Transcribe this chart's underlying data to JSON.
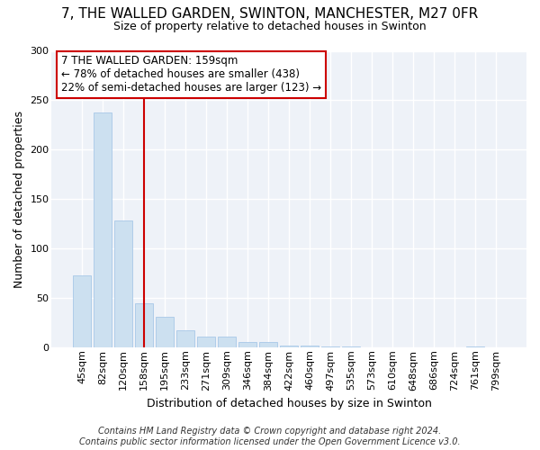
{
  "title1": "7, THE WALLED GARDEN, SWINTON, MANCHESTER, M27 0FR",
  "title2": "Size of property relative to detached houses in Swinton",
  "xlabel": "Distribution of detached houses by size in Swinton",
  "ylabel": "Number of detached properties",
  "categories": [
    "45sqm",
    "82sqm",
    "120sqm",
    "158sqm",
    "195sqm",
    "233sqm",
    "271sqm",
    "309sqm",
    "346sqm",
    "384sqm",
    "422sqm",
    "460sqm",
    "497sqm",
    "535sqm",
    "573sqm",
    "610sqm",
    "648sqm",
    "686sqm",
    "724sqm",
    "761sqm",
    "799sqm"
  ],
  "values": [
    73,
    238,
    128,
    44,
    31,
    17,
    11,
    11,
    5,
    5,
    2,
    2,
    1,
    1,
    0,
    0,
    0,
    0,
    0,
    1,
    0
  ],
  "bar_color": "#cce0f0",
  "bar_edge_color": "#a8c8e8",
  "vline_x_index": 3,
  "vline_color": "#cc0000",
  "annotation_text": "7 THE WALLED GARDEN: 159sqm\n← 78% of detached houses are smaller (438)\n22% of semi-detached houses are larger (123) →",
  "annotation_box_facecolor": "#ffffff",
  "annotation_box_edgecolor": "#cc0000",
  "ylim": [
    0,
    300
  ],
  "yticks": [
    0,
    50,
    100,
    150,
    200,
    250,
    300
  ],
  "bg_color": "#ffffff",
  "plot_bg_color": "#eef2f8",
  "grid_color": "#ffffff",
  "footer": "Contains HM Land Registry data © Crown copyright and database right 2024.\nContains public sector information licensed under the Open Government Licence v3.0.",
  "title1_fontsize": 11,
  "title2_fontsize": 9,
  "ylabel_fontsize": 9,
  "xlabel_fontsize": 9,
  "tick_fontsize": 8,
  "ann_fontsize": 8.5,
  "footer_fontsize": 7
}
